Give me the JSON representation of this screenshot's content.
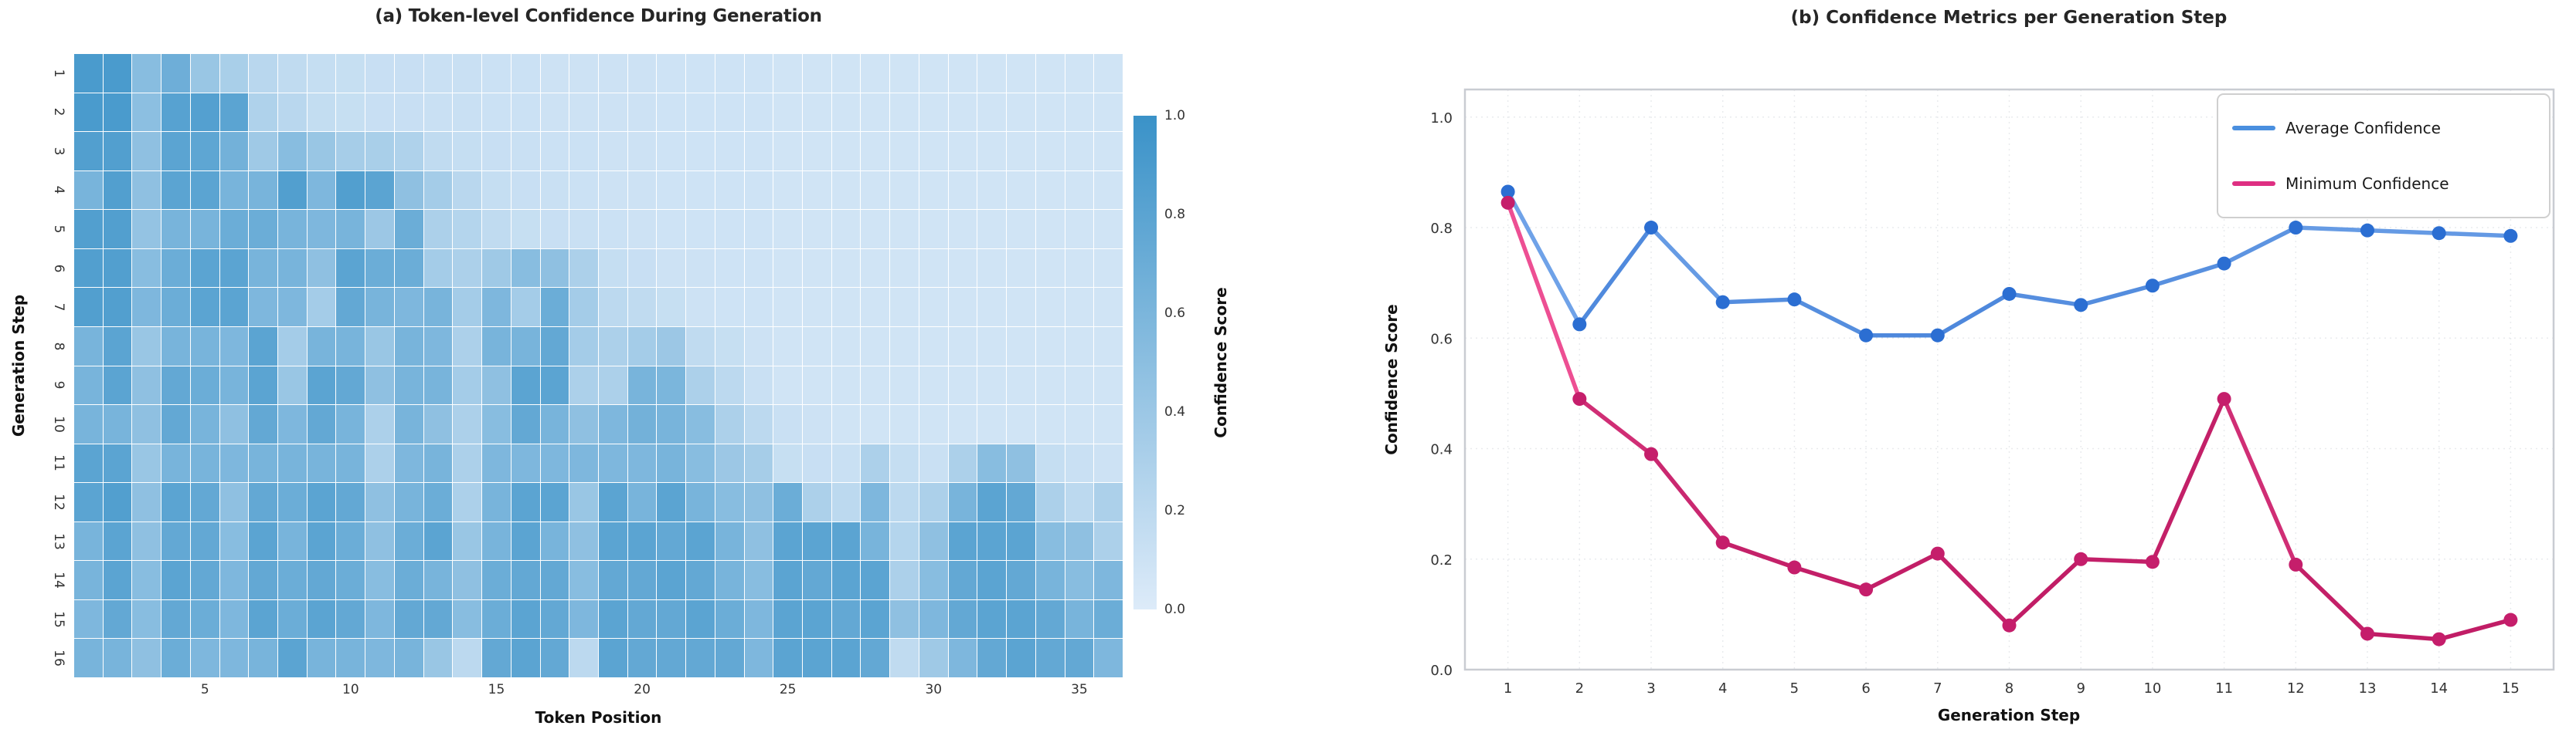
{
  "page": {
    "background": "#ffffff"
  },
  "chart_data": [
    {
      "type": "heatmap",
      "title": "(a) Token-level Confidence During Generation",
      "xlabel": "Token Position",
      "ylabel": "Generation Step",
      "rows": 16,
      "cols": 36,
      "vmin": 0.0,
      "vmax": 1.0,
      "colormap_low": "#ddebf9",
      "colormap_high": "#3a92c8",
      "x_tick_cols": [
        5,
        10,
        15,
        20,
        25,
        30,
        35
      ],
      "y_tick_labels": [
        "1",
        "2",
        "3",
        "4",
        "5",
        "6",
        "7",
        "8",
        "9",
        "10",
        "11",
        "12",
        "13",
        "14",
        "15",
        "16"
      ],
      "colorbar": {
        "label": "Confidence Score",
        "tick_values": [
          1.0,
          0.8,
          0.6,
          0.4,
          0.2,
          0.0
        ]
      },
      "values": [
        [
          0.9,
          0.9,
          0.52,
          0.68,
          0.42,
          0.32,
          0.22,
          0.18,
          0.15,
          0.14,
          0.13,
          0.13,
          0.12,
          0.12,
          0.11,
          0.11,
          0.1,
          0.1,
          0.1,
          0.1,
          0.09,
          0.09,
          0.09,
          0.09,
          0.08,
          0.08,
          0.08,
          0.08,
          0.08,
          0.08,
          0.08,
          0.08,
          0.08,
          0.08,
          0.08,
          0.08
        ],
        [
          0.9,
          0.9,
          0.5,
          0.82,
          0.84,
          0.8,
          0.28,
          0.22,
          0.16,
          0.14,
          0.13,
          0.13,
          0.12,
          0.12,
          0.11,
          0.11,
          0.1,
          0.1,
          0.1,
          0.1,
          0.09,
          0.09,
          0.09,
          0.09,
          0.08,
          0.08,
          0.08,
          0.08,
          0.08,
          0.08,
          0.08,
          0.08,
          0.08,
          0.08,
          0.08,
          0.08
        ],
        [
          0.85,
          0.85,
          0.48,
          0.8,
          0.78,
          0.65,
          0.38,
          0.52,
          0.42,
          0.34,
          0.32,
          0.28,
          0.18,
          0.15,
          0.13,
          0.12,
          0.11,
          0.11,
          0.1,
          0.1,
          0.09,
          0.09,
          0.09,
          0.09,
          0.08,
          0.08,
          0.08,
          0.08,
          0.08,
          0.08,
          0.08,
          0.08,
          0.08,
          0.08,
          0.08,
          0.08
        ],
        [
          0.62,
          0.85,
          0.48,
          0.8,
          0.8,
          0.62,
          0.62,
          0.85,
          0.58,
          0.85,
          0.8,
          0.48,
          0.35,
          0.22,
          0.15,
          0.13,
          0.12,
          0.11,
          0.1,
          0.1,
          0.09,
          0.09,
          0.09,
          0.09,
          0.08,
          0.08,
          0.08,
          0.08,
          0.08,
          0.08,
          0.08,
          0.08,
          0.08,
          0.08,
          0.08,
          0.08
        ],
        [
          0.85,
          0.85,
          0.45,
          0.62,
          0.62,
          0.7,
          0.7,
          0.62,
          0.58,
          0.62,
          0.4,
          0.7,
          0.3,
          0.25,
          0.18,
          0.14,
          0.13,
          0.12,
          0.11,
          0.1,
          0.09,
          0.09,
          0.09,
          0.09,
          0.08,
          0.08,
          0.08,
          0.08,
          0.08,
          0.08,
          0.08,
          0.08,
          0.08,
          0.08,
          0.08,
          0.08
        ],
        [
          0.85,
          0.85,
          0.52,
          0.7,
          0.8,
          0.8,
          0.62,
          0.62,
          0.48,
          0.8,
          0.7,
          0.7,
          0.35,
          0.3,
          0.38,
          0.52,
          0.48,
          0.3,
          0.15,
          0.13,
          0.1,
          0.1,
          0.09,
          0.09,
          0.08,
          0.08,
          0.08,
          0.08,
          0.08,
          0.08,
          0.08,
          0.08,
          0.08,
          0.08,
          0.08,
          0.08
        ],
        [
          0.85,
          0.85,
          0.58,
          0.7,
          0.8,
          0.8,
          0.58,
          0.58,
          0.35,
          0.75,
          0.62,
          0.58,
          0.62,
          0.35,
          0.58,
          0.35,
          0.7,
          0.35,
          0.2,
          0.18,
          0.14,
          0.1,
          0.09,
          0.09,
          0.08,
          0.08,
          0.08,
          0.08,
          0.08,
          0.08,
          0.08,
          0.08,
          0.08,
          0.08,
          0.08,
          0.08
        ],
        [
          0.62,
          0.8,
          0.42,
          0.62,
          0.62,
          0.58,
          0.8,
          0.35,
          0.62,
          0.62,
          0.42,
          0.62,
          0.58,
          0.3,
          0.62,
          0.62,
          0.75,
          0.35,
          0.3,
          0.35,
          0.4,
          0.18,
          0.14,
          0.1,
          0.08,
          0.08,
          0.08,
          0.08,
          0.08,
          0.08,
          0.08,
          0.08,
          0.08,
          0.08,
          0.08,
          0.08
        ],
        [
          0.62,
          0.8,
          0.48,
          0.75,
          0.7,
          0.62,
          0.8,
          0.42,
          0.8,
          0.75,
          0.48,
          0.62,
          0.62,
          0.35,
          0.48,
          0.8,
          0.8,
          0.3,
          0.3,
          0.62,
          0.6,
          0.3,
          0.2,
          0.12,
          0.08,
          0.08,
          0.08,
          0.08,
          0.08,
          0.08,
          0.08,
          0.08,
          0.08,
          0.08,
          0.08,
          0.08
        ],
        [
          0.62,
          0.62,
          0.48,
          0.75,
          0.62,
          0.48,
          0.75,
          0.58,
          0.75,
          0.62,
          0.3,
          0.62,
          0.48,
          0.3,
          0.52,
          0.75,
          0.62,
          0.48,
          0.58,
          0.65,
          0.62,
          0.52,
          0.3,
          0.2,
          0.12,
          0.1,
          0.08,
          0.08,
          0.08,
          0.08,
          0.08,
          0.08,
          0.08,
          0.08,
          0.08,
          0.08
        ],
        [
          0.8,
          0.8,
          0.42,
          0.62,
          0.62,
          0.58,
          0.62,
          0.62,
          0.62,
          0.62,
          0.3,
          0.58,
          0.62,
          0.3,
          0.58,
          0.58,
          0.58,
          0.58,
          0.58,
          0.58,
          0.62,
          0.52,
          0.4,
          0.34,
          0.14,
          0.13,
          0.12,
          0.3,
          0.15,
          0.12,
          0.3,
          0.52,
          0.48,
          0.15,
          0.12,
          0.1
        ],
        [
          0.8,
          0.85,
          0.48,
          0.8,
          0.75,
          0.48,
          0.75,
          0.7,
          0.8,
          0.75,
          0.48,
          0.62,
          0.7,
          0.3,
          0.62,
          0.8,
          0.8,
          0.42,
          0.8,
          0.62,
          0.8,
          0.62,
          0.52,
          0.48,
          0.7,
          0.3,
          0.2,
          0.58,
          0.2,
          0.3,
          0.62,
          0.8,
          0.75,
          0.3,
          0.2,
          0.3
        ],
        [
          0.62,
          0.8,
          0.48,
          0.75,
          0.75,
          0.52,
          0.8,
          0.62,
          0.8,
          0.7,
          0.48,
          0.7,
          0.8,
          0.42,
          0.62,
          0.8,
          0.62,
          0.48,
          0.8,
          0.8,
          0.75,
          0.8,
          0.62,
          0.48,
          0.8,
          0.8,
          0.8,
          0.62,
          0.25,
          0.48,
          0.8,
          0.8,
          0.8,
          0.52,
          0.48,
          0.3
        ],
        [
          0.62,
          0.8,
          0.52,
          0.8,
          0.75,
          0.58,
          0.75,
          0.7,
          0.75,
          0.7,
          0.52,
          0.7,
          0.62,
          0.48,
          0.7,
          0.75,
          0.75,
          0.52,
          0.75,
          0.75,
          0.8,
          0.75,
          0.62,
          0.52,
          0.8,
          0.75,
          0.8,
          0.8,
          0.3,
          0.52,
          0.75,
          0.8,
          0.75,
          0.62,
          0.52,
          0.58
        ],
        [
          0.58,
          0.75,
          0.52,
          0.75,
          0.7,
          0.58,
          0.8,
          0.7,
          0.8,
          0.75,
          0.58,
          0.75,
          0.75,
          0.52,
          0.7,
          0.8,
          0.75,
          0.58,
          0.8,
          0.75,
          0.75,
          0.8,
          0.7,
          0.58,
          0.8,
          0.8,
          0.75,
          0.8,
          0.48,
          0.58,
          0.75,
          0.8,
          0.8,
          0.75,
          0.62,
          0.7
        ],
        [
          0.62,
          0.62,
          0.48,
          0.7,
          0.58,
          0.58,
          0.62,
          0.8,
          0.62,
          0.62,
          0.58,
          0.62,
          0.42,
          0.2,
          0.75,
          0.8,
          0.75,
          0.2,
          0.8,
          0.75,
          0.75,
          0.75,
          0.75,
          0.58,
          0.8,
          0.8,
          0.8,
          0.75,
          0.18,
          0.38,
          0.58,
          0.75,
          0.8,
          0.75,
          0.75,
          0.58
        ]
      ]
    },
    {
      "type": "line",
      "title": "(b) Confidence Metrics per Generation Step",
      "xlabel": "Generation Step",
      "ylabel": "Confidence Score",
      "x": [
        1,
        2,
        3,
        4,
        5,
        6,
        7,
        8,
        9,
        10,
        11,
        12,
        13,
        14,
        15
      ],
      "ylim": [
        0.0,
        1.05
      ],
      "y_tick_values": [
        0.0,
        0.2,
        0.4,
        0.6,
        0.8,
        1.0
      ],
      "grid": true,
      "legend_position": "upper right",
      "series": [
        {
          "name": "Average Confidence",
          "color_line": "#4a8fdf",
          "color_line_light": "#85b3f0",
          "color_line_dark": "#2e6fd0",
          "color_marker": "#2b6ed2",
          "values": [
            0.865,
            0.625,
            0.8,
            0.665,
            0.67,
            0.605,
            0.605,
            0.68,
            0.66,
            0.695,
            0.735,
            0.8,
            0.795,
            0.79,
            0.785
          ]
        },
        {
          "name": "Minimum Confidence",
          "color_line": "#de2f82",
          "color_line_light": "#ff63a5",
          "color_line_dark": "#c11d66",
          "color_marker": "#c51e6b",
          "values": [
            0.845,
            0.49,
            0.39,
            0.23,
            0.185,
            0.145,
            0.21,
            0.08,
            0.2,
            0.195,
            0.49,
            0.19,
            0.065,
            0.055,
            0.09
          ]
        }
      ]
    }
  ]
}
